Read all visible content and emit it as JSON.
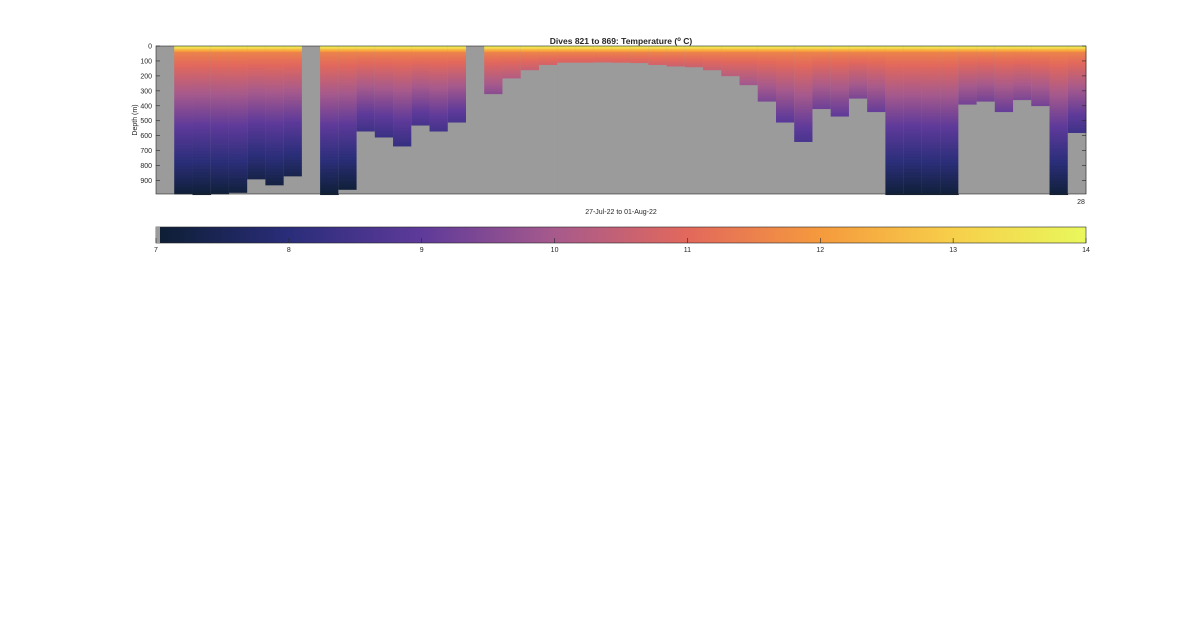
{
  "chart_data": {
    "type": "heatmap",
    "title": "Dives 821 to 869: Temperature (",
    "title_sup": "o",
    "title_unit": " C)",
    "xlabel": "27-Jul-22 to 01-Aug-22",
    "ylabel": "Depth (m)",
    "x_corner_label": "28",
    "depth_ticks": [
      0,
      100,
      200,
      300,
      400,
      500,
      600,
      700,
      800,
      900
    ],
    "depth_range": [
      0,
      990
    ],
    "colorbar": {
      "min": 7,
      "max": 14,
      "ticks": [
        7,
        8,
        9,
        10,
        11,
        12,
        13,
        14
      ]
    },
    "colormap_stops": [
      "#0d1e33",
      "#2a2d7a",
      "#5e3a9a",
      "#a75a8c",
      "#e2685c",
      "#f59a3d",
      "#f7cf4a",
      "#e9f85c"
    ],
    "nodata_color": "#9b9b9b",
    "dives": [
      {
        "max_depth": 0,
        "bottom_temp": 7.0
      },
      {
        "max_depth": 990,
        "bottom_temp": 7.1
      },
      {
        "max_depth": 995,
        "bottom_temp": 7.05
      },
      {
        "max_depth": 990,
        "bottom_temp": 7.1
      },
      {
        "max_depth": 980,
        "bottom_temp": 7.15
      },
      {
        "max_depth": 890,
        "bottom_temp": 7.3
      },
      {
        "max_depth": 930,
        "bottom_temp": 7.2
      },
      {
        "max_depth": 870,
        "bottom_temp": 7.35
      },
      {
        "max_depth": 0,
        "bottom_temp": 7.0
      },
      {
        "max_depth": 995,
        "bottom_temp": 7.05
      },
      {
        "max_depth": 960,
        "bottom_temp": 7.1
      },
      {
        "max_depth": 570,
        "bottom_temp": 8.4
      },
      {
        "max_depth": 610,
        "bottom_temp": 8.3
      },
      {
        "max_depth": 670,
        "bottom_temp": 8.2
      },
      {
        "max_depth": 530,
        "bottom_temp": 8.55
      },
      {
        "max_depth": 570,
        "bottom_temp": 8.5
      },
      {
        "max_depth": 510,
        "bottom_temp": 8.6
      },
      {
        "max_depth": 0,
        "bottom_temp": 7.0
      },
      {
        "max_depth": 320,
        "bottom_temp": 9.6
      },
      {
        "max_depth": 215,
        "bottom_temp": 10.2
      },
      {
        "max_depth": 160,
        "bottom_temp": 10.5
      },
      {
        "max_depth": 125,
        "bottom_temp": 10.7
      },
      {
        "max_depth": 110,
        "bottom_temp": 10.8
      },
      {
        "max_depth": 110,
        "bottom_temp": 10.8
      },
      {
        "max_depth": 108,
        "bottom_temp": 10.8
      },
      {
        "max_depth": 110,
        "bottom_temp": 10.8
      },
      {
        "max_depth": 112,
        "bottom_temp": 10.8
      },
      {
        "max_depth": 125,
        "bottom_temp": 10.7
      },
      {
        "max_depth": 135,
        "bottom_temp": 10.6
      },
      {
        "max_depth": 140,
        "bottom_temp": 10.6
      },
      {
        "max_depth": 160,
        "bottom_temp": 10.5
      },
      {
        "max_depth": 200,
        "bottom_temp": 10.3
      },
      {
        "max_depth": 260,
        "bottom_temp": 9.9
      },
      {
        "max_depth": 370,
        "bottom_temp": 9.4
      },
      {
        "max_depth": 510,
        "bottom_temp": 8.9
      },
      {
        "max_depth": 640,
        "bottom_temp": 8.6
      },
      {
        "max_depth": 420,
        "bottom_temp": 9.2
      },
      {
        "max_depth": 470,
        "bottom_temp": 9.0
      },
      {
        "max_depth": 350,
        "bottom_temp": 9.4
      },
      {
        "max_depth": 440,
        "bottom_temp": 9.1
      },
      {
        "max_depth": 995,
        "bottom_temp": 7.1
      },
      {
        "max_depth": 995,
        "bottom_temp": 7.05
      },
      {
        "max_depth": 995,
        "bottom_temp": 7.1
      },
      {
        "max_depth": 995,
        "bottom_temp": 7.1
      },
      {
        "max_depth": 390,
        "bottom_temp": 9.3
      },
      {
        "max_depth": 370,
        "bottom_temp": 9.3
      },
      {
        "max_depth": 440,
        "bottom_temp": 9.1
      },
      {
        "max_depth": 360,
        "bottom_temp": 9.4
      },
      {
        "max_depth": 400,
        "bottom_temp": 9.3
      },
      {
        "max_depth": 995,
        "bottom_temp": 7.1
      },
      {
        "max_depth": 580,
        "bottom_temp": 8.4
      }
    ]
  }
}
